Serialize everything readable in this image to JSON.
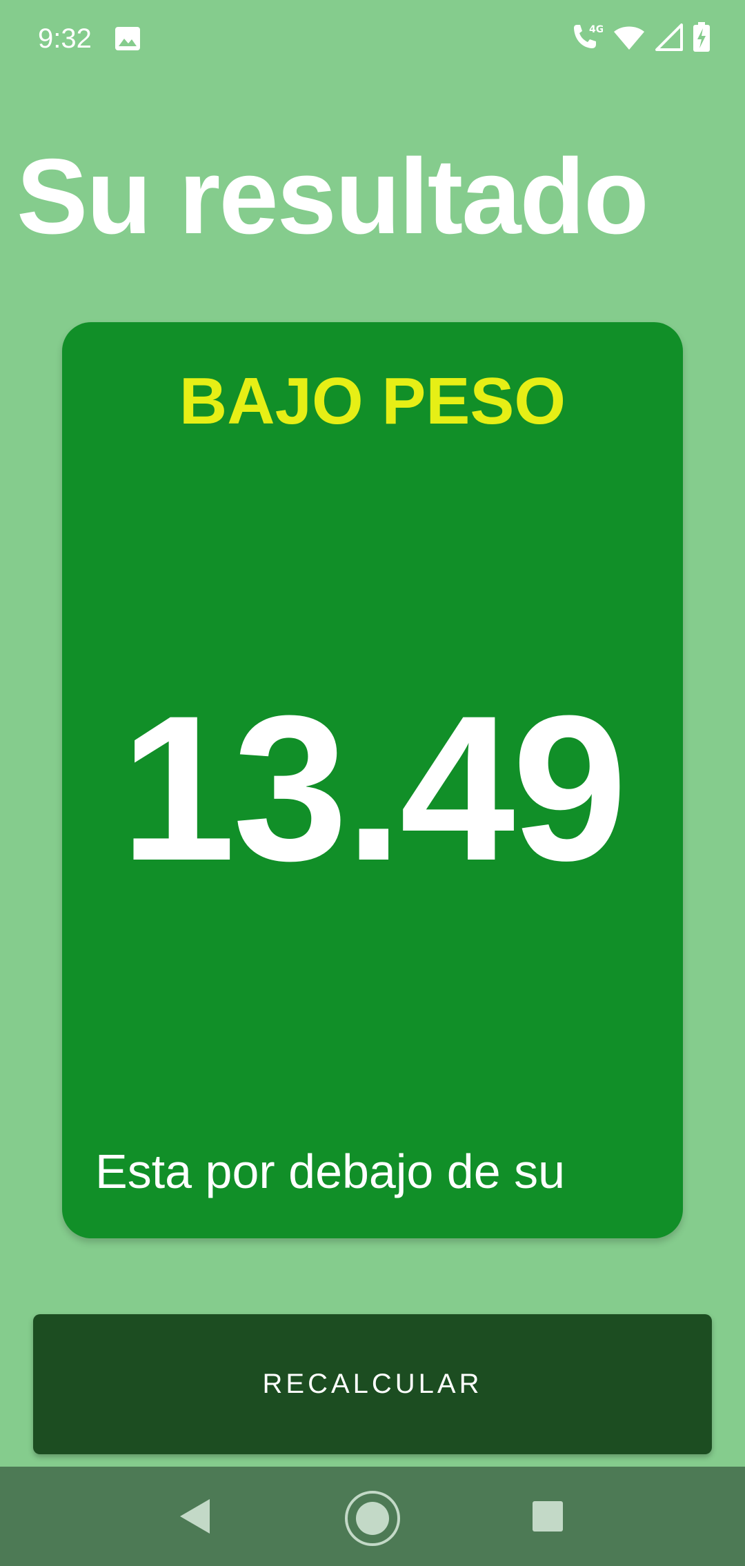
{
  "status_bar": {
    "time": "9:32",
    "left_icons": [
      "image-icon"
    ],
    "right_icons": [
      "volte-call-icon",
      "wifi-icon",
      "signal-icon",
      "battery-charging-icon"
    ],
    "network_label": "4G"
  },
  "header": {
    "title": "Su resultado"
  },
  "result": {
    "status": "BAJO PESO",
    "value": "13.49",
    "message": "Esta por debajo de su"
  },
  "actions": {
    "recalculate_label": "RECALCULAR"
  },
  "nav_bar": {
    "buttons": [
      "back-icon",
      "home-icon",
      "recents-icon"
    ]
  },
  "colors": {
    "background": "#85cc8d",
    "card": "#118f28",
    "status_text": "#e6ef16",
    "button": "#1c4d21",
    "nav_bar": "#4d7a55"
  }
}
